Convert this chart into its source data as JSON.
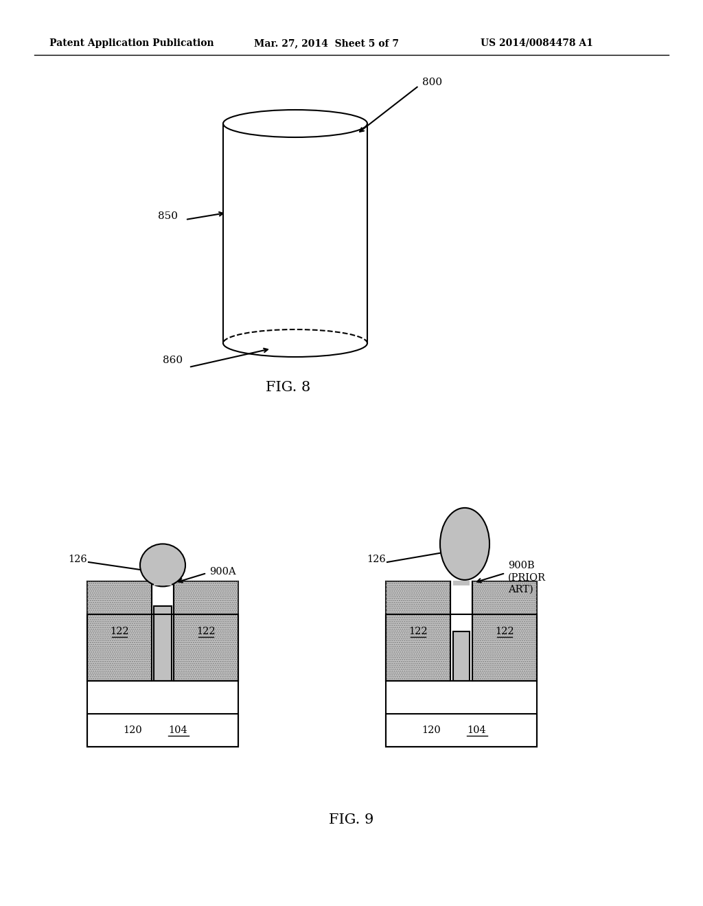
{
  "header_left": "Patent Application Publication",
  "header_mid": "Mar. 27, 2014  Sheet 5 of 7",
  "header_right": "US 2014/0084478 A1",
  "fig8_label": "FIG. 8",
  "fig9_label": "FIG. 9",
  "bg_color": "#ffffff",
  "line_color": "#000000",
  "dotted_fill_color": "#cccccc",
  "wire_body_color": "#c0c0c0",
  "label_800": "800",
  "label_850": "850",
  "label_860": "860"
}
